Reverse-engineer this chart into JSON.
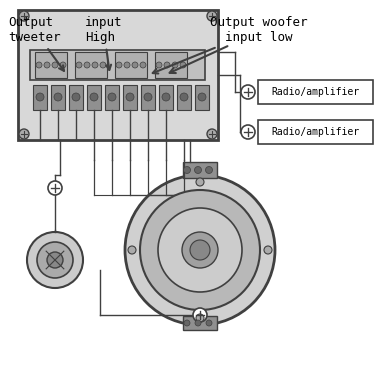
{
  "bg_color": "#ffffff",
  "line_color": "#404040",
  "box_fill": "#e8e8e8",
  "text_color": "#000000",
  "title_font": 9,
  "label_font": 8,
  "fig_width": 3.84,
  "fig_height": 3.7,
  "labels": {
    "output_tweeter": "Output\ntweeter",
    "input_high": "input\nHigh",
    "output_woofer": "Output woofer\n  input low",
    "radio1": "Radio/amplifier",
    "radio2": "Radio/amplifier"
  }
}
